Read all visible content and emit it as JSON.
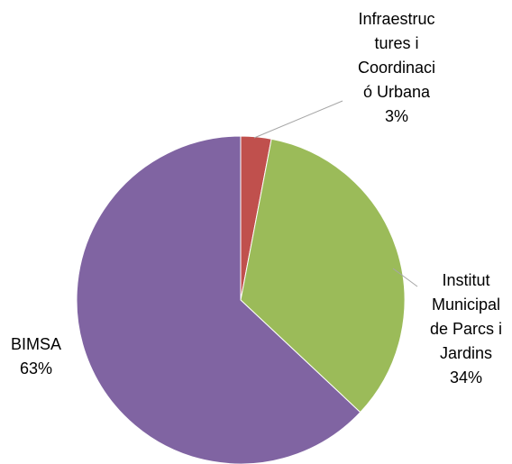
{
  "chart_data": {
    "type": "pie",
    "categories": [
      "Infraestructures i Coordinació Urbana",
      "Institut Municipal de Parcs i Jardins",
      "BIMSA"
    ],
    "values": [
      3,
      34,
      63
    ],
    "value_labels": [
      "3%",
      "34%",
      "63%"
    ],
    "colors": [
      "#c0504d",
      "#9bbb59",
      "#8064a2"
    ]
  }
}
